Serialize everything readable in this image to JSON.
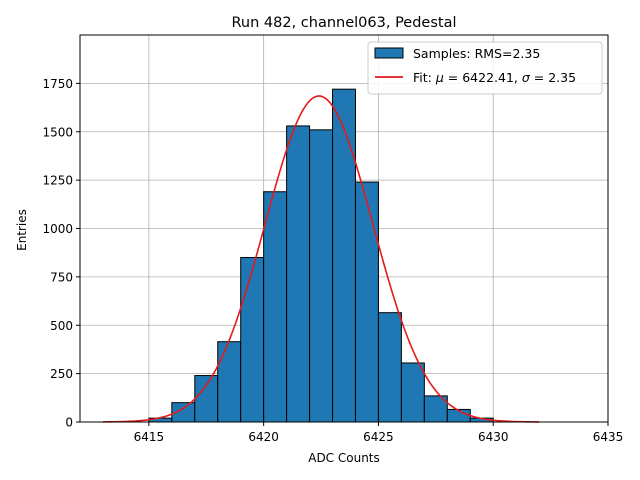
{
  "chart_data": {
    "type": "bar",
    "title": "Run 482, channel063, Pedestal",
    "xlabel": "ADC Counts",
    "ylabel": "Entries",
    "xlim": [
      6412,
      6435
    ],
    "ylim": [
      0,
      2000
    ],
    "xticks": [
      6415,
      6420,
      6425,
      6430,
      6435
    ],
    "yticks": [
      0,
      250,
      500,
      750,
      1000,
      1250,
      1500,
      1750
    ],
    "grid": true,
    "legend_position": "top-right",
    "bar_color": "#1f77b4",
    "bar_edge_color": "#000000",
    "fit_color": "#e41a1c",
    "histogram": {
      "name": "Samples: RMS=2.35",
      "bins": [
        {
          "x0": 6415,
          "x1": 6416,
          "value": 20
        },
        {
          "x0": 6416,
          "x1": 6417,
          "value": 100
        },
        {
          "x0": 6417,
          "x1": 6418,
          "value": 240
        },
        {
          "x0": 6418,
          "x1": 6419,
          "value": 415
        },
        {
          "x0": 6419,
          "x1": 6420,
          "value": 850
        },
        {
          "x0": 6420,
          "x1": 6421,
          "value": 1190
        },
        {
          "x0": 6421,
          "x1": 6422,
          "value": 1530
        },
        {
          "x0": 6422,
          "x1": 6423,
          "value": 1510
        },
        {
          "x0": 6423,
          "x1": 6424,
          "value": 1720
        },
        {
          "x0": 6424,
          "x1": 6425,
          "value": 1240
        },
        {
          "x0": 6425,
          "x1": 6426,
          "value": 565
        },
        {
          "x0": 6426,
          "x1": 6427,
          "value": 305
        },
        {
          "x0": 6427,
          "x1": 6428,
          "value": 135
        },
        {
          "x0": 6428,
          "x1": 6429,
          "value": 65
        },
        {
          "x0": 6429,
          "x1": 6430,
          "value": 20
        }
      ]
    },
    "fit": {
      "name_prefix": "Fit: ",
      "mu_symbol": "μ",
      "mu_text": " = 6422.41, ",
      "sigma_symbol": "σ",
      "sigma_text": " = 2.35",
      "mu": 6422.41,
      "sigma": 2.35,
      "amplitude": 1685,
      "x_range": [
        6413,
        6432
      ]
    }
  }
}
